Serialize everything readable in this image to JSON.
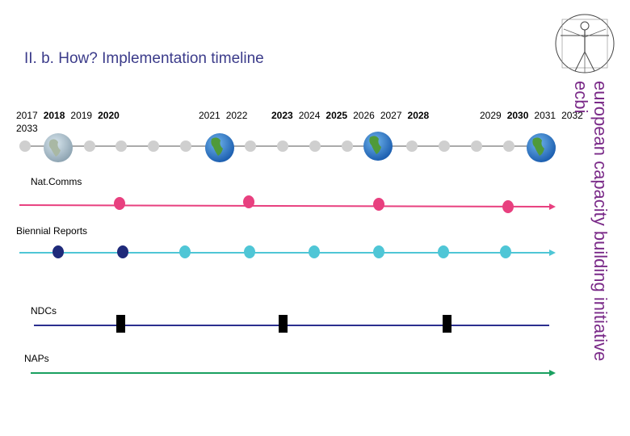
{
  "title": "II. b. How? Implementation timeline",
  "years": [
    {
      "label": "2017",
      "bold": false
    },
    {
      "label": "2018",
      "bold": true
    },
    {
      "label": "2019",
      "bold": false
    },
    {
      "label": "2020",
      "bold": true
    },
    {
      "label": "2021",
      "bold": false
    },
    {
      "label": "2022",
      "bold": false
    },
    {
      "label": "2023",
      "bold": true
    },
    {
      "label": "2024",
      "bold": false
    },
    {
      "label": "2025",
      "bold": true
    },
    {
      "label": "2026",
      "bold": false
    },
    {
      "label": "2027",
      "bold": false
    },
    {
      "label": "2028",
      "bold": true
    },
    {
      "label": "2029",
      "bold": false
    },
    {
      "label": "2030",
      "bold": true
    },
    {
      "label": "2031",
      "bold": false
    },
    {
      "label": "2032",
      "bold": false
    },
    {
      "label": "2033",
      "bold": false
    }
  ],
  "rows": {
    "natcomms": "Nat.Comms",
    "biennial": "Biennial Reports",
    "ndcs": "NDCs",
    "naps": "NAPs"
  },
  "side": {
    "line1": "european capacity building initiative",
    "line2": "ecbi"
  },
  "colors": {
    "title": "#3b3b8a",
    "natcomms": "#e8407f",
    "biennial": "#4fc6d6",
    "biennial_dark": "#1f2a7a",
    "ndcs": "#2b2f8f",
    "naps": "#1aa060",
    "side": "#7a2a88"
  }
}
